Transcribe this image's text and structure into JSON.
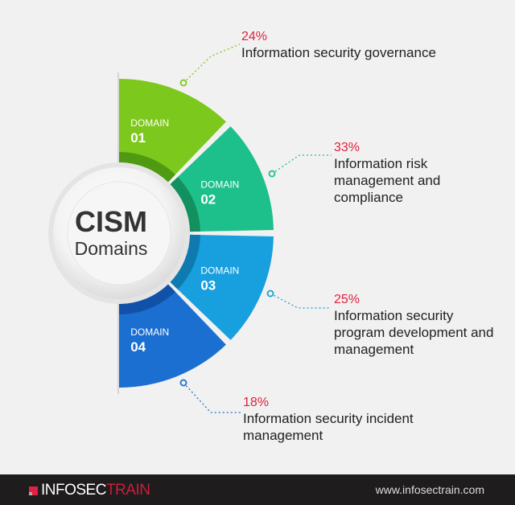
{
  "center": {
    "title": "CISM",
    "subtitle": "Domains"
  },
  "domains": [
    {
      "label": "DOMAIN",
      "number": "01",
      "percent": "24%",
      "name": "Information security governance",
      "color": "#7dc81c",
      "dark": "#4f9a12"
    },
    {
      "label": "DOMAIN",
      "number": "02",
      "percent": "33%",
      "name": "Information risk management and compliance",
      "color": "#1dbf8a",
      "dark": "#139060"
    },
    {
      "label": "DOMAIN",
      "number": "03",
      "percent": "25%",
      "name": "Information security program development and management",
      "color": "#179fde",
      "dark": "#0e7ab0"
    },
    {
      "label": "DOMAIN",
      "number": "04",
      "percent": "18%",
      "name": "Information security incident management",
      "color": "#1b6fd0",
      "dark": "#1251a8"
    }
  ],
  "footer": {
    "brand_a": "INFOSEC",
    "brand_b": "TRAIN",
    "url": "www.infosectrain.com"
  },
  "accent": "#e0213f"
}
